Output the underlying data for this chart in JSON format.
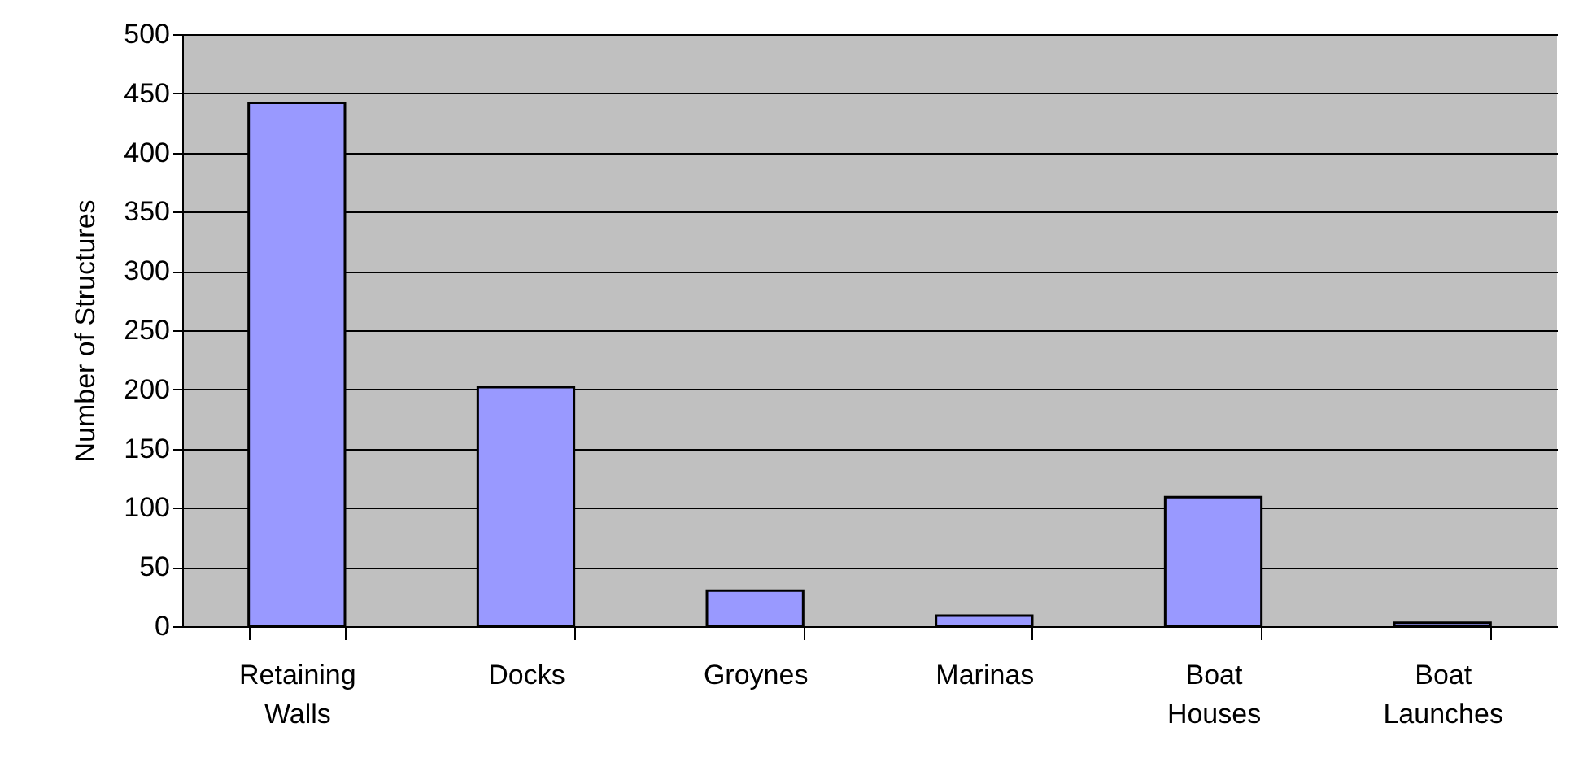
{
  "chart_data": {
    "type": "bar",
    "ylabel": "Number of Structures",
    "categories": [
      "Retaining Walls",
      "Docks",
      "Groynes",
      "Marinas",
      "Boat Houses",
      "Boat Launches"
    ],
    "values": [
      442,
      202,
      30,
      9,
      109,
      3
    ],
    "color": "#9999ff",
    "ylim": [
      0,
      500
    ],
    "yticks": [
      0,
      50,
      100,
      150,
      200,
      250,
      300,
      350,
      400,
      450,
      500
    ],
    "grid": "y"
  }
}
